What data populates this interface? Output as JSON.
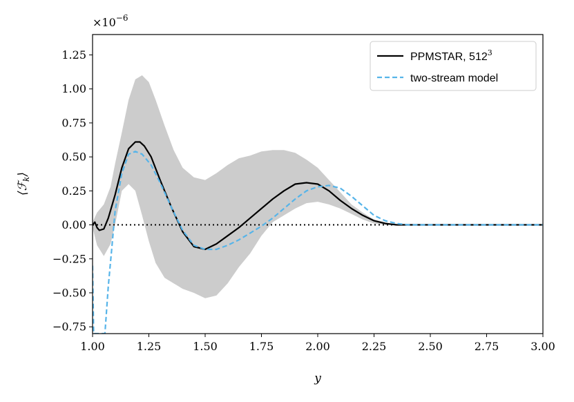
{
  "chart_data": {
    "type": "line",
    "title": "",
    "xlabel": "y",
    "ylabel": "⟨ℱ",
    "ylabel_sub": "k",
    "ylabel_close": "⟩",
    "offset_text": "×10",
    "offset_exp": "−6",
    "xlim": [
      1.0,
      3.0
    ],
    "ylim": [
      -0.8,
      1.4
    ],
    "xticks": [
      1.0,
      1.25,
      1.5,
      1.75,
      2.0,
      2.25,
      2.5,
      2.75,
      3.0
    ],
    "xtick_labels": [
      "1.00",
      "1.25",
      "1.50",
      "1.75",
      "2.00",
      "2.25",
      "2.50",
      "2.75",
      "3.00"
    ],
    "yticks": [
      -0.75,
      -0.5,
      -0.25,
      0.0,
      0.25,
      0.5,
      0.75,
      1.0,
      1.25
    ],
    "ytick_labels": [
      "−0.75",
      "−0.50",
      "−0.25",
      "0.00",
      "0.25",
      "0.50",
      "0.75",
      "1.00",
      "1.25"
    ],
    "legend_position": "top-right",
    "colors": {
      "ppmstar": "#000000",
      "model": "#56b4e9",
      "band": "#cccccc",
      "zero_line": "#000000"
    },
    "series": [
      {
        "name": "PPMSTAR, 512",
        "name_sup": "3",
        "style": "solid",
        "x": [
          1.0,
          1.01,
          1.02,
          1.03,
          1.05,
          1.07,
          1.1,
          1.13,
          1.16,
          1.19,
          1.21,
          1.23,
          1.26,
          1.3,
          1.35,
          1.4,
          1.45,
          1.5,
          1.55,
          1.6,
          1.65,
          1.7,
          1.75,
          1.8,
          1.85,
          1.9,
          1.95,
          2.0,
          2.05,
          2.1,
          2.15,
          2.2,
          2.25,
          2.3,
          2.35,
          2.4,
          2.5,
          2.6,
          2.7,
          2.8,
          2.9,
          3.0
        ],
        "y": [
          0.0,
          0.02,
          -0.02,
          -0.04,
          -0.03,
          0.05,
          0.22,
          0.42,
          0.56,
          0.61,
          0.61,
          0.58,
          0.5,
          0.33,
          0.13,
          -0.05,
          -0.16,
          -0.18,
          -0.14,
          -0.08,
          -0.02,
          0.05,
          0.12,
          0.19,
          0.25,
          0.3,
          0.31,
          0.3,
          0.25,
          0.18,
          0.12,
          0.07,
          0.03,
          0.01,
          0.0,
          0.0,
          0.0,
          0.0,
          0.0,
          0.0,
          0.0,
          0.0
        ]
      },
      {
        "name": "two-stream model",
        "style": "dashed",
        "x": [
          1.0,
          1.005,
          1.02,
          1.04,
          1.055,
          1.07,
          1.085,
          1.1,
          1.13,
          1.16,
          1.19,
          1.22,
          1.26,
          1.3,
          1.35,
          1.4,
          1.45,
          1.5,
          1.55,
          1.6,
          1.65,
          1.7,
          1.75,
          1.8,
          1.85,
          1.9,
          1.95,
          2.0,
          2.05,
          2.1,
          2.15,
          2.2,
          2.25,
          2.3,
          2.35,
          2.4,
          2.5,
          2.6,
          2.7,
          2.8,
          2.9,
          3.0
        ],
        "y": [
          -0.3,
          -0.8,
          -0.8,
          -0.8,
          -0.8,
          -0.45,
          -0.18,
          0.1,
          0.38,
          0.52,
          0.54,
          0.52,
          0.44,
          0.31,
          0.13,
          -0.04,
          -0.15,
          -0.18,
          -0.18,
          -0.15,
          -0.11,
          -0.06,
          -0.01,
          0.05,
          0.12,
          0.19,
          0.25,
          0.28,
          0.29,
          0.27,
          0.21,
          0.14,
          0.07,
          0.03,
          0.01,
          0.0,
          0.0,
          0.0,
          0.0,
          0.0,
          0.0,
          0.0
        ]
      }
    ],
    "band": {
      "x": [
        1.0,
        1.02,
        1.05,
        1.08,
        1.1,
        1.13,
        1.16,
        1.19,
        1.22,
        1.25,
        1.28,
        1.32,
        1.36,
        1.4,
        1.45,
        1.5,
        1.55,
        1.6,
        1.65,
        1.7,
        1.75,
        1.8,
        1.85,
        1.9,
        1.95,
        2.0,
        2.05,
        2.1,
        2.15,
        2.2,
        2.25,
        2.3,
        2.35,
        2.4,
        2.5,
        2.7,
        3.0
      ],
      "upper": [
        0.02,
        0.09,
        0.15,
        0.28,
        0.45,
        0.68,
        0.92,
        1.07,
        1.1,
        1.05,
        0.92,
        0.73,
        0.55,
        0.42,
        0.35,
        0.33,
        0.38,
        0.44,
        0.49,
        0.51,
        0.54,
        0.55,
        0.55,
        0.53,
        0.48,
        0.42,
        0.33,
        0.24,
        0.15,
        0.09,
        0.04,
        0.02,
        0.0,
        0.0,
        0.0,
        0.0,
        0.0
      ],
      "lower": [
        -0.02,
        -0.15,
        -0.23,
        -0.14,
        0.0,
        0.25,
        0.3,
        0.25,
        0.07,
        -0.12,
        -0.28,
        -0.39,
        -0.43,
        -0.47,
        -0.5,
        -0.54,
        -0.52,
        -0.43,
        -0.31,
        -0.21,
        -0.08,
        0.02,
        0.07,
        0.12,
        0.16,
        0.17,
        0.15,
        0.12,
        0.08,
        0.04,
        0.01,
        0.0,
        0.0,
        0.0,
        0.0,
        0.0,
        0.0
      ]
    }
  }
}
